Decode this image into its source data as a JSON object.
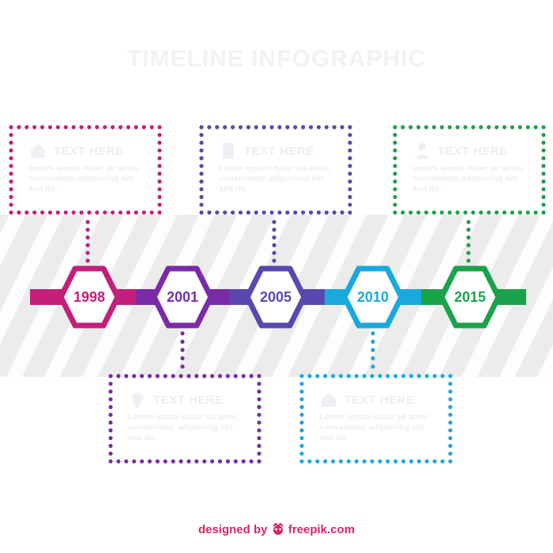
{
  "title": "TIMELINE INFOGRAPHIC",
  "colors": {
    "magenta": "#c41f7a",
    "purple": "#7a2ba8",
    "indigo": "#5a47b0",
    "cyan": "#1aa9df",
    "green": "#1aa34a",
    "band": "#ececec",
    "faded_text": "#eceef3",
    "credit": "#d4276b"
  },
  "milestones": [
    {
      "year": "1998",
      "color": "#c41f7a",
      "position": "top",
      "icon": "house-icon",
      "heading": "TEXT HERE",
      "body": "Lorem ipsum dolor sit amet, consectetur adipiscing elit sed do."
    },
    {
      "year": "2001",
      "color": "#7a2ba8",
      "position": "bottom",
      "icon": "bulb-icon",
      "heading": "TEXT HERE",
      "body": "Lorem ipsum dolor sit amet, consectetur adipiscing elit sed do."
    },
    {
      "year": "2005",
      "color": "#5a47b0",
      "position": "top",
      "icon": "document-icon",
      "heading": "TEXT HERE",
      "body": "Lorem ipsum dolor sit amet, consectetur adipiscing elit sed do."
    },
    {
      "year": "2010",
      "color": "#1aa9df",
      "position": "bottom",
      "icon": "house-icon",
      "heading": "TEXT HERE",
      "body": "Lorem ipsum dolor sit amet, consectetur adipiscing elit sed do."
    },
    {
      "year": "2015",
      "color": "#1aa34a",
      "position": "top",
      "icon": "person-icon",
      "heading": "TEXT HERE",
      "body": "Lorem ipsum dolor sit amet, consectetur adipiscing elit sed do."
    }
  ],
  "credit": {
    "prefix": "designed by",
    "brand": "freepik.com",
    "logo_icon": "freepik-logo-icon"
  }
}
